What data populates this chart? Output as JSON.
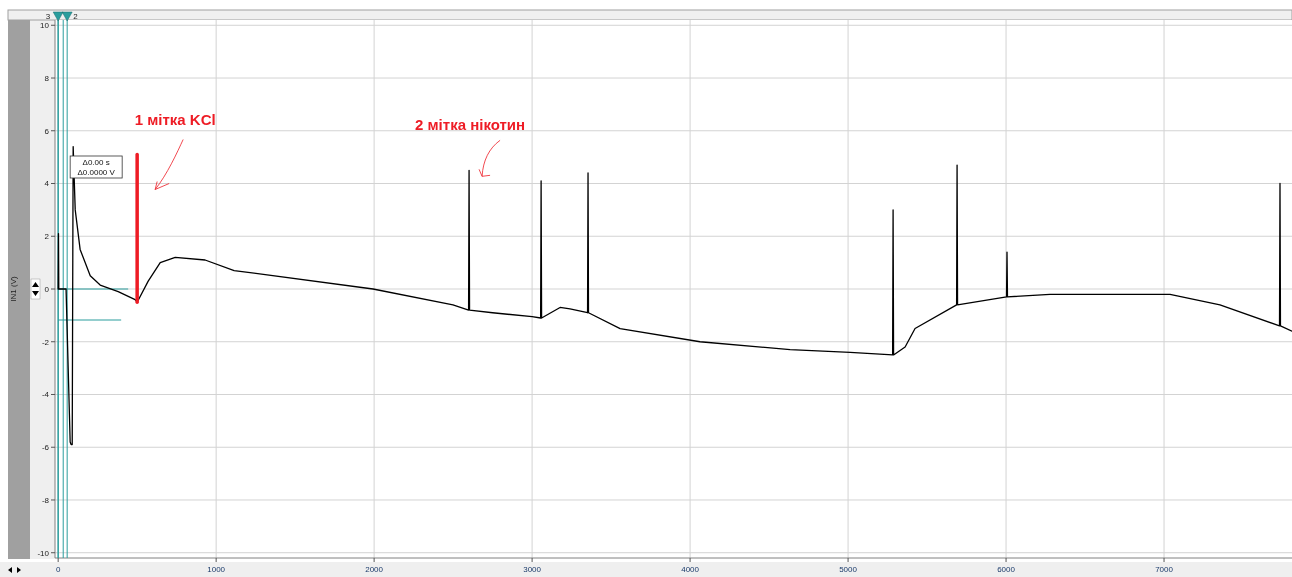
{
  "chart_data": {
    "type": "line",
    "ylabel": "IN1 (V)",
    "xlim": [
      -20,
      7810
    ],
    "ylim": [
      -10.2,
      10.2
    ],
    "xticks": [
      0,
      1000,
      2000,
      3000,
      4000,
      5000,
      6000,
      7000
    ],
    "yticks": [
      -10,
      -8,
      -6,
      -4,
      -2,
      0,
      2,
      4,
      6,
      8,
      10
    ],
    "grid": true,
    "line_style": "solid",
    "series": [
      {
        "color": "#000000",
        "x": [
          0,
          2,
          4,
          8,
          30,
          50,
          76,
          82,
          89,
          92,
          95,
          108,
          139,
          203,
          266,
          380,
          487,
          500,
          570,
          646,
          741,
          930,
          1114,
          1993,
          2499,
          2598,
          2601,
          2604,
          2750,
          3000,
          3054,
          3057,
          3060,
          3177,
          3240,
          3351,
          3354,
          3357,
          3557,
          4063,
          4633,
          5013,
          5282,
          5285,
          5288,
          5361,
          5424,
          5687,
          5690,
          5693,
          6003,
          6006,
          6009,
          6278,
          6595,
          7038,
          7354,
          7731,
          7734,
          7737,
          7810
        ],
        "values": [
          0,
          2.1,
          0,
          0,
          0,
          0,
          -5.8,
          -5.9,
          -5.9,
          0,
          5.4,
          3.0,
          1.5,
          0.5,
          0.15,
          -0.1,
          -0.4,
          -0.5,
          0.3,
          1.0,
          1.2,
          1.1,
          0.7,
          0.0,
          -0.6,
          -0.8,
          4.5,
          -0.8,
          -0.9,
          -1.05,
          -1.1,
          4.1,
          -1.1,
          -0.7,
          -0.75,
          -0.9,
          4.4,
          -0.9,
          -1.5,
          -2.0,
          -2.3,
          -2.4,
          -2.5,
          3.0,
          -2.5,
          -2.2,
          -1.5,
          -0.6,
          4.7,
          -0.6,
          -0.3,
          1.4,
          -0.3,
          -0.2,
          -0.2,
          -0.2,
          -0.6,
          -1.4,
          4.0,
          -1.4,
          -1.6
        ]
      },
      {
        "color": "#ee1c25",
        "x": [
          500,
          500
        ],
        "values": [
          -0.5,
          5.1
        ]
      }
    ],
    "ref_lines": [
      {
        "axis": "x",
        "value": 0,
        "color": "#2a9d9d"
      },
      {
        "axis": "x",
        "value": 32,
        "color": "#2a9d9d"
      },
      {
        "axis": "x",
        "value": 57,
        "color": "#2a9d9d"
      }
    ],
    "annotations": [
      {
        "text": "1 мітка KCl",
        "x": 500,
        "y": 5.1
      },
      {
        "text": "2 мітка нікотин",
        "x": 2601,
        "y": 4.5
      },
      "Δ0.00 s",
      "Δ0.0000 V",
      "3",
      "2"
    ]
  }
}
